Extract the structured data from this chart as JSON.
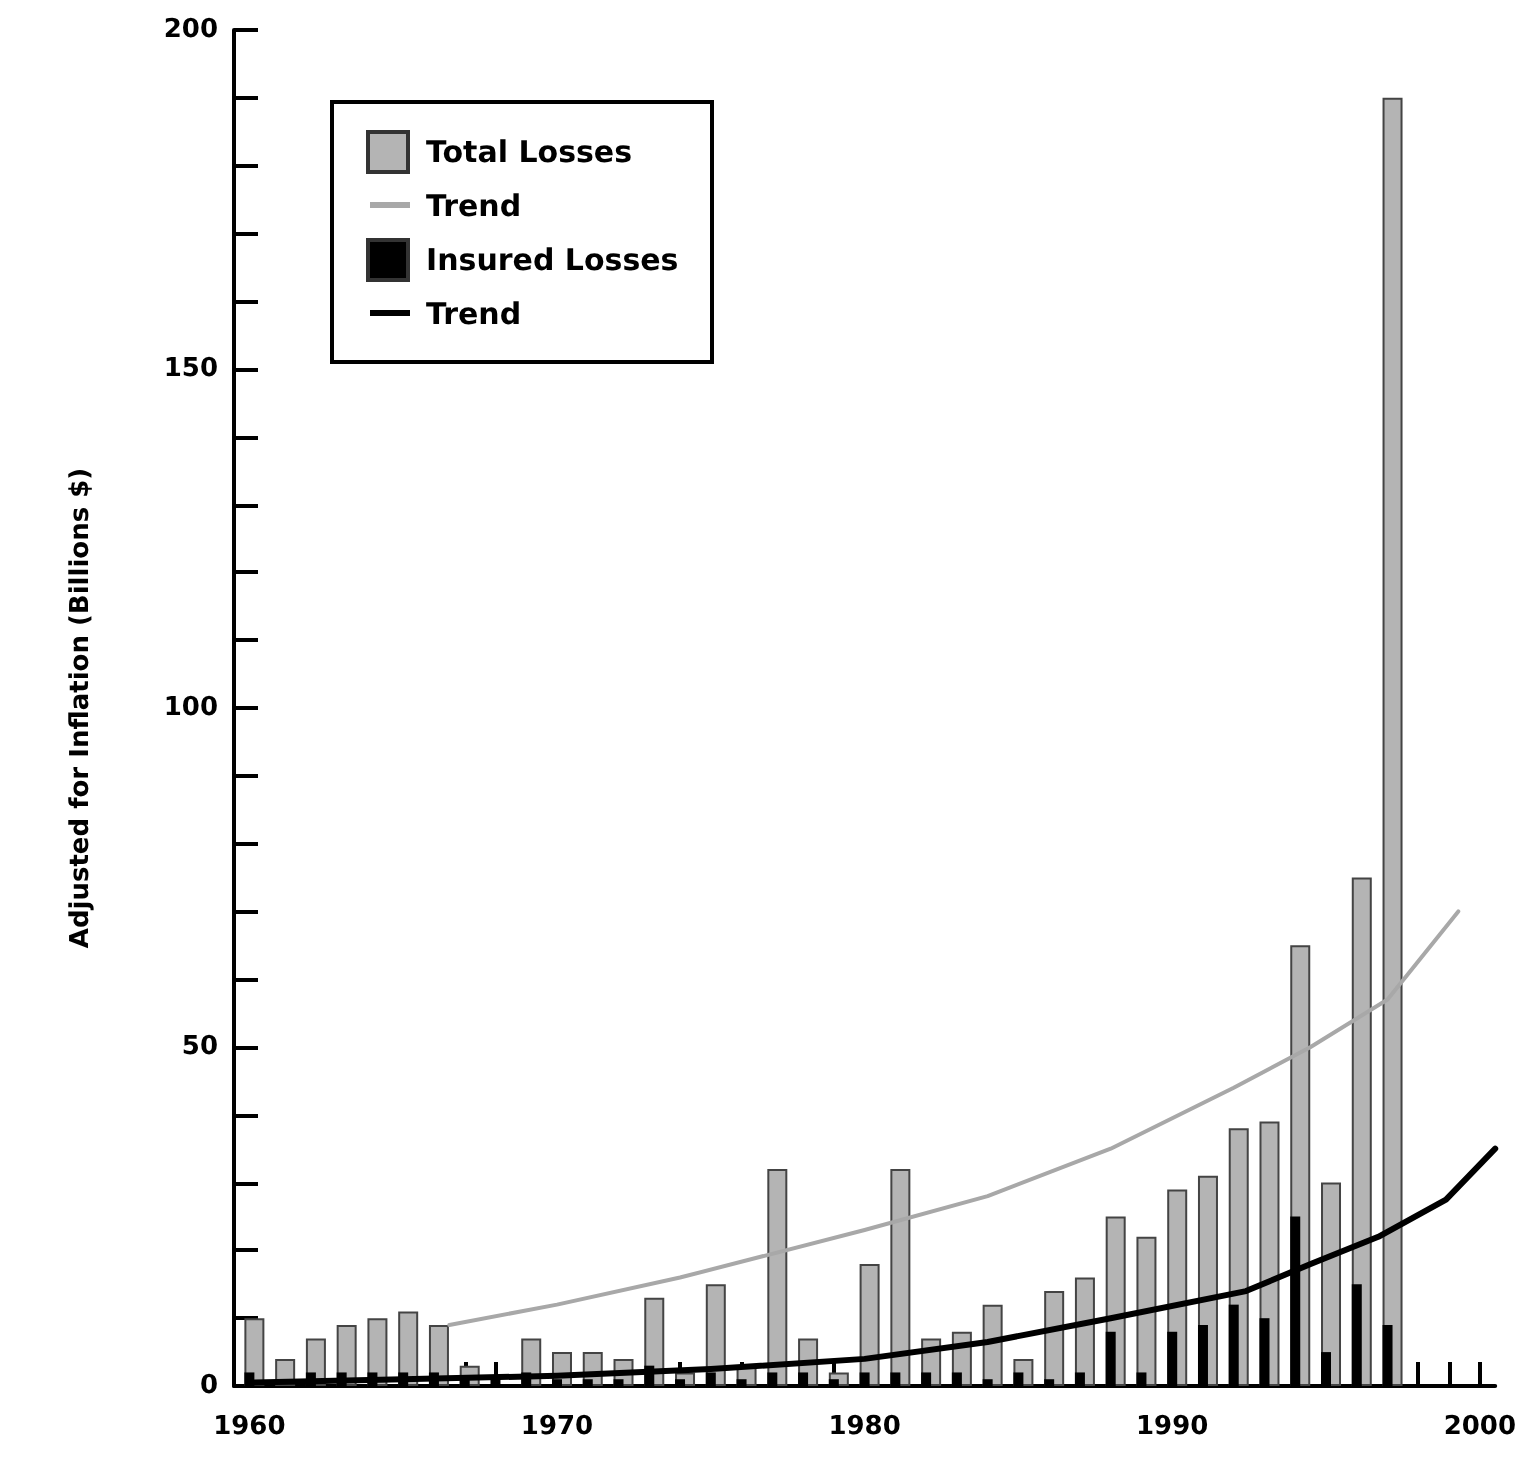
{
  "chart_data": {
    "type": "bar",
    "ylabel": "Adjusted for Inflation (Billions $)",
    "x": [
      1960,
      1961,
      1962,
      1963,
      1964,
      1965,
      1966,
      1967,
      1968,
      1969,
      1970,
      1971,
      1972,
      1973,
      1974,
      1975,
      1976,
      1977,
      1978,
      1979,
      1980,
      1981,
      1982,
      1983,
      1984,
      1985,
      1986,
      1987,
      1988,
      1989,
      1990,
      1991,
      1992,
      1993,
      1994,
      1995,
      1996,
      1997
    ],
    "series": [
      {
        "name": "Total Losses",
        "color": "#b4b4b4",
        "values": [
          10,
          4,
          7,
          9,
          10,
          11,
          9,
          3,
          null,
          7,
          5,
          5,
          4,
          13,
          2,
          15,
          3,
          32,
          7,
          2,
          18,
          32,
          7,
          8,
          12,
          4,
          14,
          16,
          25,
          22,
          29,
          31,
          38,
          39,
          65,
          30,
          75,
          190
        ]
      },
      {
        "name": "Trend",
        "type": "line",
        "color": "#a8a8a8",
        "x": [
          1966.5,
          1970,
          1974,
          1980,
          1984,
          1988,
          1992,
          1994.5,
          1997,
          1999.3
        ],
        "values": [
          9,
          12,
          16,
          23,
          28,
          35,
          44,
          50,
          57,
          70
        ]
      },
      {
        "name": "Insured Losses",
        "color": "#000000",
        "values": [
          2,
          null,
          2,
          2,
          2,
          2,
          2,
          1,
          1,
          2,
          1,
          1,
          1,
          3,
          1,
          2,
          1,
          2,
          2,
          1,
          2,
          2,
          2,
          2,
          1,
          2,
          1,
          2,
          8,
          2,
          8,
          9,
          12,
          10,
          25,
          5,
          15,
          9
        ]
      },
      {
        "name": "Trend",
        "type": "line",
        "color": "#000000",
        "x": [
          1960,
          1965,
          1970,
          1975,
          1980,
          1984,
          1988,
          1992.4,
          1994.5,
          1996.7,
          1998.9,
          2000.5
        ],
        "values": [
          0.5,
          1,
          1.5,
          2.5,
          4,
          6.5,
          10,
          14,
          18,
          22,
          27.5,
          35
        ]
      }
    ],
    "xlim": [
      1959.5,
      2000.5
    ],
    "xticks": [
      1960,
      {
        "value": 1961,
        "label": null
      },
      {
        "value": 1962,
        "label": null
      },
      {
        "value": 1963,
        "label": null
      },
      {
        "value": 1964,
        "label": null
      },
      {
        "value": 1965,
        "label": null
      },
      {
        "value": 1966,
        "label": null
      },
      {
        "value": 1967,
        "label": null
      },
      {
        "value": 1968,
        "label": null
      },
      {
        "value": 1969,
        "label": null
      },
      1970,
      {
        "value": 1971,
        "label": null
      },
      {
        "value": 1972,
        "label": null
      },
      {
        "value": 1973,
        "label": null
      },
      {
        "value": 1974,
        "label": null
      },
      {
        "value": 1975,
        "label": null
      },
      {
        "value": 1976,
        "label": null
      },
      {
        "value": 1977,
        "label": null
      },
      {
        "value": 1978,
        "label": null
      },
      {
        "value": 1979,
        "label": null
      },
      1980,
      {
        "value": 1981,
        "label": null
      },
      {
        "value": 1982,
        "label": null
      },
      {
        "value": 1983,
        "label": null
      },
      {
        "value": 1984,
        "label": null
      },
      {
        "value": 1985,
        "label": null
      },
      {
        "value": 1986,
        "label": null
      },
      {
        "value": 1987,
        "label": null
      },
      {
        "value": 1988,
        "label": null
      },
      {
        "value": 1989,
        "label": null
      },
      1990,
      {
        "value": 1991,
        "label": null
      },
      {
        "value": 1992,
        "label": null
      },
      {
        "value": 1993,
        "label": null
      },
      {
        "value": 1994,
        "label": null
      },
      {
        "value": 1995,
        "label": null
      },
      {
        "value": 1996,
        "label": null
      },
      {
        "value": 1997,
        "label": null
      },
      {
        "value": 1998,
        "label": null
      },
      {
        "value": 1999,
        "label": null
      },
      2000
    ],
    "ylim": [
      0,
      200
    ],
    "yticks": [
      0,
      {
        "value": 10,
        "label": null
      },
      {
        "value": 20,
        "label": null
      },
      {
        "value": 30,
        "label": null
      },
      {
        "value": 40,
        "label": null
      },
      50,
      {
        "value": 60,
        "label": null
      },
      {
        "value": 70,
        "label": null
      },
      {
        "value": 80,
        "label": null
      },
      {
        "value": 90,
        "label": null
      },
      100,
      {
        "value": 110,
        "label": null
      },
      {
        "value": 120,
        "label": null
      },
      {
        "value": 130,
        "label": null
      },
      {
        "value": 140,
        "label": null
      },
      150,
      {
        "value": 160,
        "label": null
      },
      {
        "value": 170,
        "label": null
      },
      {
        "value": 180,
        "label": null
      },
      {
        "value": 190,
        "label": null
      },
      200
    ],
    "grid": false,
    "legend": "top left",
    "marker": "none",
    "line_style": "solid"
  }
}
